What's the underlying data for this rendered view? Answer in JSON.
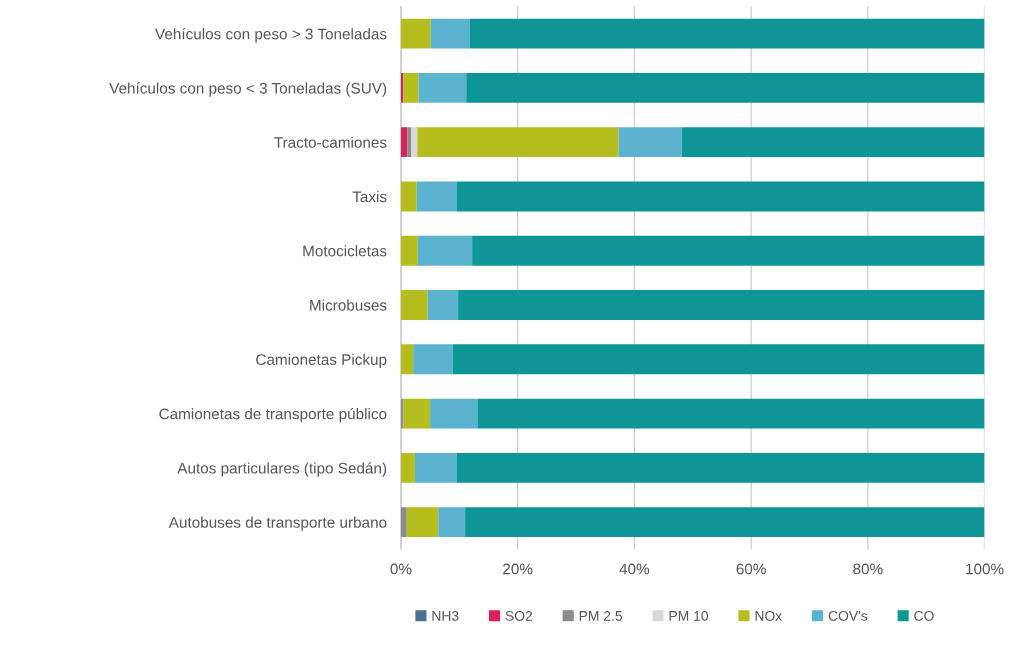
{
  "chart_data": {
    "type": "bar",
    "orientation": "horizontal",
    "stacked": true,
    "categories": [
      "Vehículos con peso > 3 Toneladas",
      "Vehículos con peso < 3 Toneladas (SUV)",
      "Tracto-camiones",
      "Taxis",
      "Motocicletas",
      "Microbuses",
      "Camionetas Pickup",
      "Camionetas de transporte público",
      "Autos particulares (tipo Sedán)",
      "Autobuses de transporte urbano"
    ],
    "series": [
      {
        "name": "NH3",
        "color": "#4a6f96",
        "values": [
          0,
          0,
          0,
          0,
          0,
          0,
          0,
          0,
          0,
          0
        ]
      },
      {
        "name": "SO2",
        "color": "#d8245a",
        "values": [
          0,
          0.4,
          1.1,
          0,
          0,
          0,
          0,
          0,
          0,
          0
        ]
      },
      {
        "name": "PM 2.5",
        "color": "#8c8c8c",
        "values": [
          0,
          0,
          0.7,
          0,
          0,
          0,
          0,
          0.4,
          0,
          1.0
        ]
      },
      {
        "name": "PM 10",
        "color": "#d9d9d9",
        "values": [
          0,
          0,
          1.0,
          0,
          0,
          0,
          0,
          0,
          0,
          0
        ]
      },
      {
        "name": "NOx",
        "color": "#b5be1e",
        "values": [
          5.1,
          2.6,
          34.5,
          2.7,
          2.9,
          4.6,
          2.1,
          4.6,
          2.4,
          5.4
        ]
      },
      {
        "name": "COV's",
        "color": "#5bb3d0",
        "values": [
          6.7,
          8.2,
          10.8,
          6.9,
          9.3,
          5.2,
          6.8,
          8.2,
          7.2,
          4.6
        ]
      },
      {
        "name": "CO",
        "color": "#0e9696",
        "values": [
          88.2,
          88.8,
          51.9,
          90.4,
          87.8,
          90.2,
          91.1,
          86.8,
          90.4,
          89.0
        ]
      }
    ],
    "xlim": [
      0,
      100
    ],
    "xticks": [
      {
        "value": 0,
        "label": "0%"
      },
      {
        "value": 20,
        "label": "20%"
      },
      {
        "value": 40,
        "label": "40%"
      },
      {
        "value": 60,
        "label": "60%"
      },
      {
        "value": 80,
        "label": "80%"
      },
      {
        "value": 100,
        "label": "100%"
      }
    ],
    "grid": "x",
    "legend": "bottom"
  }
}
